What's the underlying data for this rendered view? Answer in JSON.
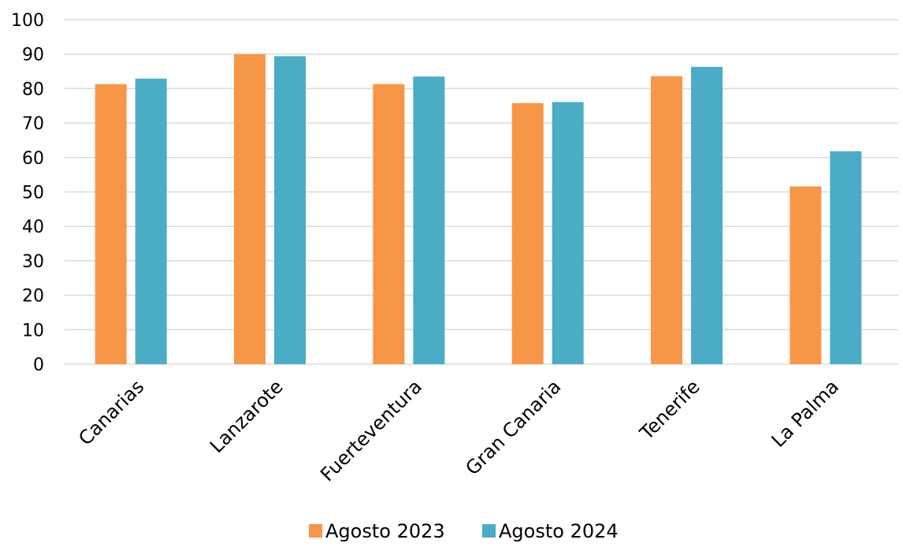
{
  "chart_data": {
    "type": "bar",
    "categories": [
      "Canarias",
      "Lanzarote",
      "Fuerteventura",
      "Gran Canaria",
      "Tenerife",
      "La Palma"
    ],
    "series": [
      {
        "name": "Agosto 2023",
        "values": [
          81.3,
          90.0,
          81.3,
          75.8,
          83.6,
          51.6
        ],
        "color": "#F79646"
      },
      {
        "name": "Agosto 2024",
        "values": [
          82.9,
          89.4,
          83.5,
          76.1,
          86.3,
          61.8
        ],
        "color": "#4BACC6"
      }
    ],
    "title": "",
    "xlabel": "",
    "ylabel": "",
    "ylim": [
      0,
      100
    ],
    "yticks": [
      0,
      10,
      20,
      30,
      40,
      50,
      60,
      70,
      80,
      90,
      100
    ],
    "grid": true,
    "legend_position": "bottom"
  }
}
